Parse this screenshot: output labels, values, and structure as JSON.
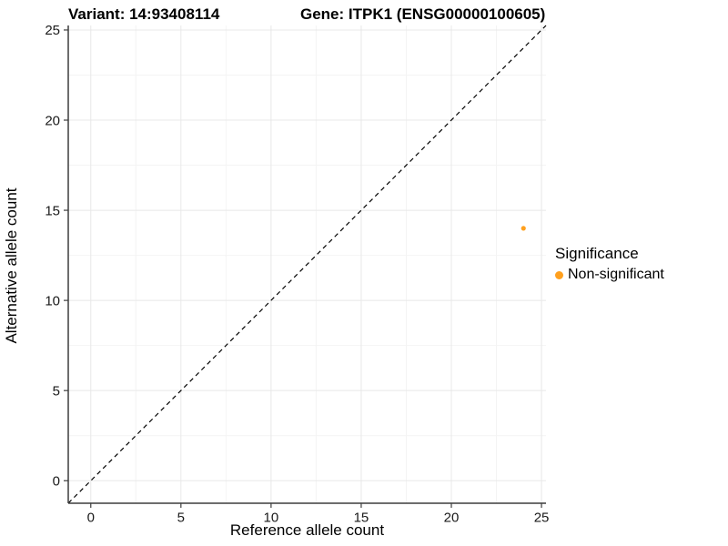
{
  "titles": {
    "left": "Variant: 14:93408114",
    "right": "Gene: ITPK1 (ENSG00000100605)"
  },
  "chart_data": {
    "type": "scatter",
    "xlabel": "Reference allele count",
    "ylabel": "Alternative allele count",
    "xlim": [
      -1.25,
      26.5
    ],
    "ylim": [
      -1.25,
      26.5
    ],
    "x_ticks": [
      0,
      5,
      10,
      15,
      20,
      25
    ],
    "y_ticks": [
      0,
      5,
      10,
      15,
      20,
      25
    ],
    "grid": true,
    "points": [
      {
        "x": 24,
        "y": 14,
        "series": "Non-significant"
      }
    ],
    "reference_line": {
      "type": "identity y=x",
      "style": "dashed",
      "color": "#000000"
    },
    "legend": {
      "title": "Significance",
      "position": "right",
      "items": [
        {
          "label": "Non-significant",
          "color": "#FFA01E"
        }
      ]
    }
  },
  "colors": {
    "point": "#FFA01E",
    "grid_major": "#e8e8e8",
    "grid_minor": "#f4f4f4",
    "axis_line": "#3d3d3d",
    "tick_label": "#1a1a1a",
    "dashed_line": "#000000"
  }
}
